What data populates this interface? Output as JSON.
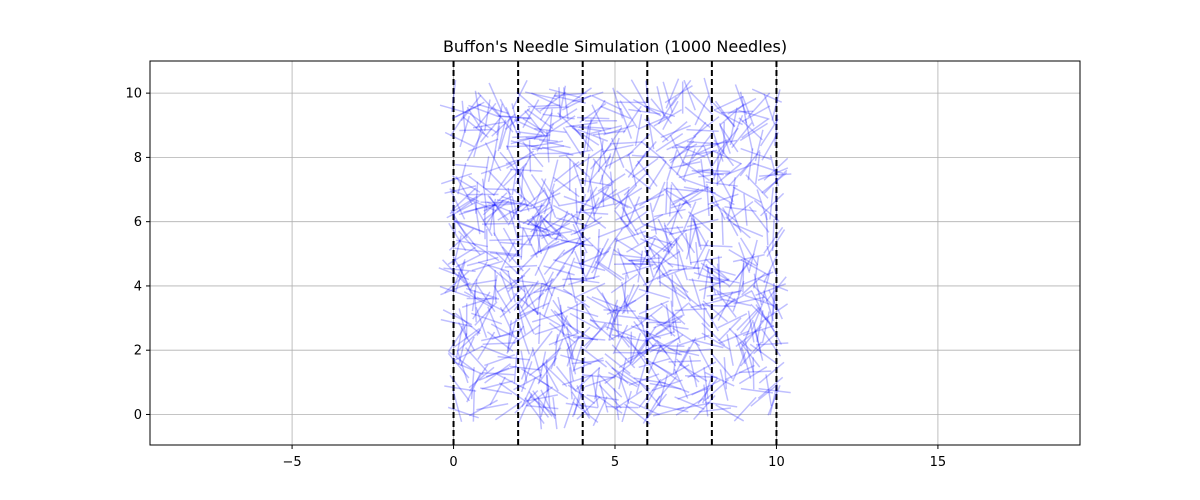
{
  "chart_data": {
    "type": "scatter",
    "title": "Buffon's Needle Simulation (1000 Needles)",
    "xlabel": "",
    "ylabel": "",
    "xlim": [
      -9.4,
      19.4
    ],
    "ylim": [
      -0.95,
      11.0
    ],
    "xticks": [
      -5,
      0,
      5,
      10,
      15
    ],
    "xtick_labels": [
      "−5",
      "0",
      "5",
      "10",
      "15"
    ],
    "yticks": [
      0,
      2,
      4,
      6,
      8,
      10
    ],
    "ytick_labels": [
      "0",
      "2",
      "4",
      "6",
      "8",
      "10"
    ],
    "grid": true,
    "reference_lines": {
      "orientation": "vertical",
      "style": "dashed",
      "color": "#000000",
      "x": [
        0,
        2,
        4,
        6,
        8,
        10
      ]
    },
    "needles": {
      "count": 1000,
      "length": 1.0,
      "x_center_range": [
        0,
        10
      ],
      "y_center_range": [
        0,
        10
      ],
      "color": "#0000ff",
      "alpha": 0.25
    }
  }
}
